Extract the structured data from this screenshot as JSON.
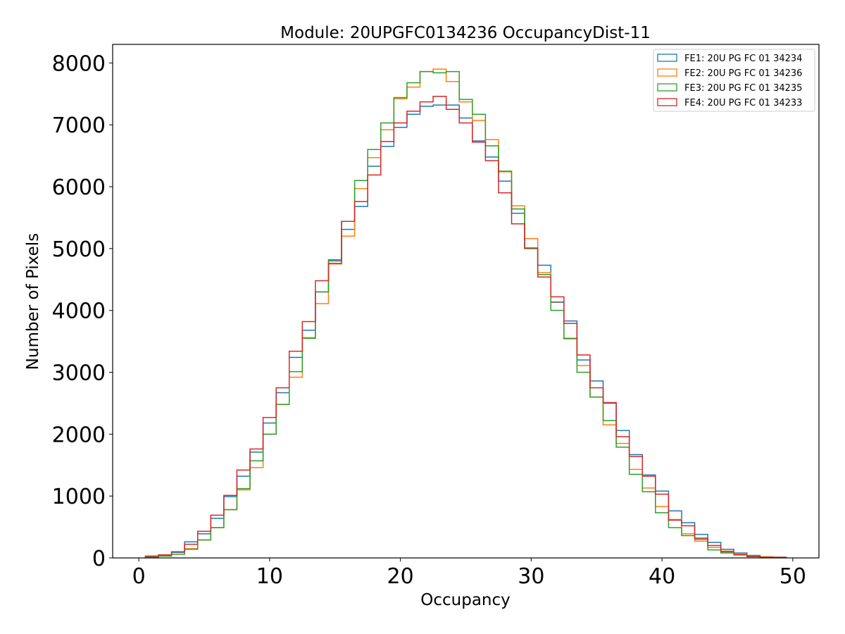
{
  "chart_data": {
    "type": "histogram",
    "title": "Module: 20UPGFC0134236 OccupancyDist-11",
    "xlabel": "Occupancy",
    "ylabel": "Number of Pixels",
    "xlim": [
      -2,
      52
    ],
    "ylim": [
      0,
      8300
    ],
    "xticks": [
      0,
      10,
      20,
      30,
      40,
      50
    ],
    "yticks": [
      0,
      1000,
      2000,
      3000,
      4000,
      5000,
      6000,
      7000,
      8000
    ],
    "grid": false,
    "legend_position": "top-right",
    "bin_edges": [
      0.5,
      1.5,
      2.5,
      3.5,
      4.5,
      5.5,
      6.5,
      7.5,
      8.5,
      9.5,
      10.5,
      11.5,
      12.5,
      13.5,
      14.5,
      15.5,
      16.5,
      17.5,
      18.5,
      19.5,
      20.5,
      21.5,
      22.5,
      23.5,
      24.5,
      25.5,
      26.5,
      27.5,
      28.5,
      29.5,
      30.5,
      31.5,
      32.5,
      33.5,
      34.5,
      35.5,
      36.5,
      37.5,
      38.5,
      39.5,
      40.5,
      41.5,
      42.5,
      43.5,
      44.5,
      45.5,
      46.5,
      47.5,
      48.5,
      49.5
    ],
    "series": [
      {
        "name": "FE1: 20U PG FC 01 34234",
        "color": "#1f77b4",
        "values": [
          20,
          40,
          90,
          260,
          390,
          640,
          990,
          1320,
          1710,
          2180,
          2670,
          3240,
          3680,
          4300,
          4800,
          5310,
          5680,
          6330,
          6650,
          6960,
          7170,
          7300,
          7320,
          7320,
          7110,
          6740,
          6480,
          6090,
          5570,
          5000,
          4730,
          4130,
          3830,
          3200,
          2860,
          2500,
          2060,
          1670,
          1340,
          1080,
          760,
          570,
          380,
          250,
          140,
          80,
          40,
          20,
          10
        ]
      },
      {
        "name": "FE2: 20U PG FC 01 34236",
        "color": "#ff7f0e",
        "values": [
          10,
          30,
          60,
          150,
          290,
          490,
          780,
          1100,
          1460,
          2000,
          2480,
          2920,
          3560,
          4110,
          4750,
          5200,
          5970,
          6470,
          6920,
          7420,
          7610,
          7860,
          7900,
          7700,
          7370,
          7070,
          6760,
          6240,
          5690,
          5160,
          4610,
          4140,
          3540,
          3110,
          2600,
          2150,
          1850,
          1430,
          1130,
          830,
          620,
          390,
          270,
          170,
          110,
          60,
          30,
          20,
          10
        ]
      },
      {
        "name": "FE3: 20U PG FC 01 34235",
        "color": "#2ca02c",
        "values": [
          10,
          30,
          60,
          140,
          290,
          490,
          780,
          1120,
          1570,
          2000,
          2480,
          3010,
          3550,
          4300,
          4820,
          5440,
          6100,
          6600,
          7030,
          7440,
          7680,
          7860,
          7840,
          7860,
          7410,
          7170,
          6660,
          6250,
          5640,
          5000,
          4580,
          4000,
          3550,
          3000,
          2600,
          2220,
          1790,
          1350,
          1070,
          730,
          490,
          360,
          300,
          130,
          80,
          50,
          30,
          10,
          10
        ]
      },
      {
        "name": "FE4: 20U PG FC 01 34233",
        "color": "#d62728",
        "values": [
          30,
          50,
          100,
          220,
          430,
          690,
          1010,
          1420,
          1760,
          2270,
          2750,
          3340,
          3820,
          4480,
          4760,
          5440,
          5760,
          6190,
          6730,
          7030,
          7220,
          7370,
          7460,
          7250,
          7030,
          6720,
          6420,
          5900,
          5400,
          5010,
          4540,
          4220,
          3790,
          3280,
          2750,
          2510,
          1960,
          1640,
          1320,
          1030,
          610,
          520,
          320,
          200,
          100,
          50,
          20,
          10,
          10
        ]
      }
    ]
  }
}
